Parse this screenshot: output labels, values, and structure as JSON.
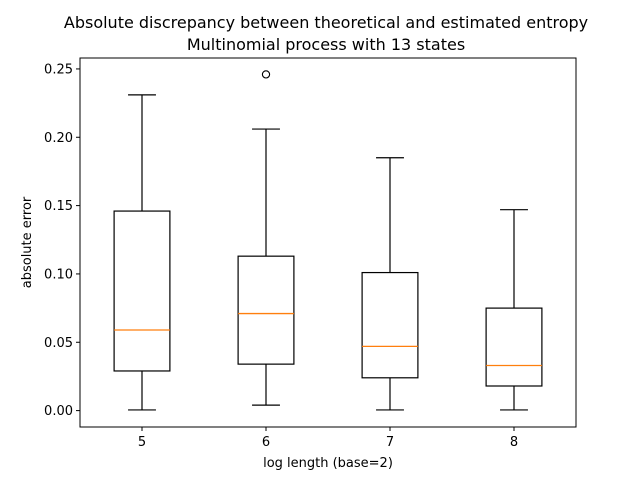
{
  "chart_data": {
    "type": "box",
    "title": "Absolute discrepancy between theoretical and estimated entropy",
    "subtitle": "Multinomial process with 13 states",
    "xlabel": "log length (base=2)",
    "ylabel": "absolute error",
    "categories": [
      "5",
      "6",
      "7",
      "8"
    ],
    "ylim": [
      -0.012,
      0.258
    ],
    "yticks": [
      0.0,
      0.05,
      0.1,
      0.15,
      0.2,
      0.25
    ],
    "ytick_labels": [
      "0.00",
      "0.05",
      "0.10",
      "0.15",
      "0.20",
      "0.25"
    ],
    "grid": false,
    "boxes": [
      {
        "category": "5",
        "whisker_low": 0.0005,
        "q1": 0.029,
        "median": 0.059,
        "q3": 0.146,
        "whisker_high": 0.231,
        "outliers": []
      },
      {
        "category": "6",
        "whisker_low": 0.004,
        "q1": 0.034,
        "median": 0.071,
        "q3": 0.113,
        "whisker_high": 0.206,
        "outliers": [
          0.246
        ]
      },
      {
        "category": "7",
        "whisker_low": 0.0005,
        "q1": 0.024,
        "median": 0.047,
        "q3": 0.101,
        "whisker_high": 0.185,
        "outliers": []
      },
      {
        "category": "8",
        "whisker_low": 0.0005,
        "q1": 0.018,
        "median": 0.033,
        "q3": 0.075,
        "whisker_high": 0.147,
        "outliers": []
      }
    ],
    "colors": {
      "box": "#000000",
      "median": "#ff7f0e",
      "outlier": "#000000"
    }
  }
}
